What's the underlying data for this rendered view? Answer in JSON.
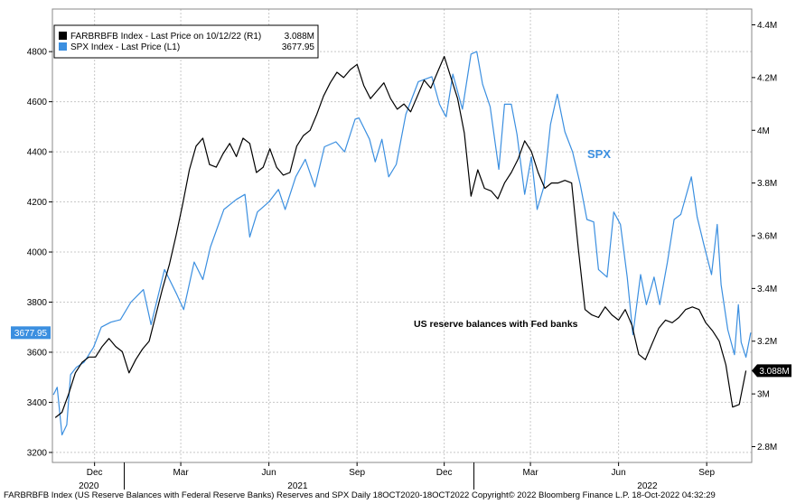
{
  "footer": "FARBRBFB Index (US Reserve Balances with Federal Reserve Banks) Reserves and SPX  Daily 18OCT2020-18OCT2022  Copyright© 2022 Bloomberg Finance L.P.  18-Oct-2022 04:32:29",
  "chart_data": {
    "type": "line",
    "legend": [
      {
        "label": "FARBRBFB Index - Last Price on 10/12/22 (R1)",
        "value": "3.088M",
        "color": "#000000"
      },
      {
        "label": "SPX Index - Last Price (L1)",
        "value": "3677.95",
        "color": "#3b8fe0"
      }
    ],
    "annotations": [
      {
        "text": "SPX",
        "color": "#3b8fe0"
      },
      {
        "text": "US reserve balances with Fed banks",
        "color": "#000000"
      }
    ],
    "last_value_tags": {
      "left": "3677.95",
      "right": "3.088M"
    },
    "x_ticks": [
      {
        "date": "2020-12-01",
        "label": "Dec"
      },
      {
        "date": "2021-03-01",
        "label": "Mar"
      },
      {
        "date": "2021-06-01",
        "label": "Jun"
      },
      {
        "date": "2021-09-01",
        "label": "Sep"
      },
      {
        "date": "2021-12-01",
        "label": "Dec"
      },
      {
        "date": "2022-03-01",
        "label": "Mar"
      },
      {
        "date": "2022-06-01",
        "label": "Jun"
      },
      {
        "date": "2022-09-01",
        "label": "Sep"
      }
    ],
    "year_labels": [
      {
        "label": "2020",
        "date": "2020-11-25"
      },
      {
        "label": "2021",
        "date": "2021-07-01"
      },
      {
        "label": "2022",
        "date": "2022-07-01"
      }
    ],
    "year_dividers": [
      "2021-01-01",
      "2022-01-01"
    ],
    "xlim": [
      "2020-10-18",
      "2022-10-18"
    ],
    "y_left": {
      "ticks": [
        3200,
        3400,
        3600,
        3800,
        4000,
        4200,
        4400,
        4600,
        4800
      ],
      "ylim": [
        3160,
        4970
      ]
    },
    "y_right": {
      "ticks": [
        2.8,
        3.0,
        3.2,
        3.4,
        3.6,
        3.8,
        4.0,
        4.2,
        4.4
      ],
      "tick_labels": [
        "2.8M",
        "3M",
        "3.2M",
        "3.4M",
        "3.6M",
        "3.8M",
        "4M",
        "4.2M",
        "4.4M"
      ],
      "ylim": [
        2.74,
        4.46
      ],
      "unit": "M"
    },
    "grid": true,
    "series": [
      {
        "name": "SPX Index - Last Price (L1)",
        "axis": "left",
        "color": "#3b8fe0",
        "points": [
          [
            "2020-10-19",
            3430
          ],
          [
            "2020-10-23",
            3460
          ],
          [
            "2020-10-28",
            3270
          ],
          [
            "2020-11-02",
            3310
          ],
          [
            "2020-11-06",
            3510
          ],
          [
            "2020-11-12",
            3540
          ],
          [
            "2020-11-20",
            3560
          ],
          [
            "2020-11-30",
            3620
          ],
          [
            "2020-12-08",
            3700
          ],
          [
            "2020-12-18",
            3720
          ],
          [
            "2020-12-28",
            3730
          ],
          [
            "2021-01-08",
            3800
          ],
          [
            "2021-01-21",
            3850
          ],
          [
            "2021-01-29",
            3710
          ],
          [
            "2021-02-12",
            3930
          ],
          [
            "2021-02-25",
            3830
          ],
          [
            "2021-03-04",
            3770
          ],
          [
            "2021-03-15",
            3960
          ],
          [
            "2021-03-24",
            3890
          ],
          [
            "2021-04-01",
            4020
          ],
          [
            "2021-04-15",
            4170
          ],
          [
            "2021-04-28",
            4210
          ],
          [
            "2021-05-07",
            4230
          ],
          [
            "2021-05-12",
            4060
          ],
          [
            "2021-05-20",
            4160
          ],
          [
            "2021-06-01",
            4200
          ],
          [
            "2021-06-11",
            4250
          ],
          [
            "2021-06-18",
            4170
          ],
          [
            "2021-06-29",
            4300
          ],
          [
            "2021-07-09",
            4370
          ],
          [
            "2021-07-19",
            4260
          ],
          [
            "2021-07-29",
            4420
          ],
          [
            "2021-08-10",
            4440
          ],
          [
            "2021-08-19",
            4400
          ],
          [
            "2021-08-30",
            4530
          ],
          [
            "2021-09-03",
            4535
          ],
          [
            "2021-09-14",
            4450
          ],
          [
            "2021-09-20",
            4360
          ],
          [
            "2021-09-27",
            4450
          ],
          [
            "2021-10-04",
            4300
          ],
          [
            "2021-10-12",
            4350
          ],
          [
            "2021-10-22",
            4550
          ],
          [
            "2021-11-04",
            4680
          ],
          [
            "2021-11-18",
            4700
          ],
          [
            "2021-11-26",
            4590
          ],
          [
            "2021-11-30",
            4560
          ],
          [
            "2021-12-03",
            4540
          ],
          [
            "2021-12-10",
            4710
          ],
          [
            "2021-12-20",
            4570
          ],
          [
            "2021-12-29",
            4790
          ],
          [
            "2022-01-04",
            4800
          ],
          [
            "2022-01-10",
            4670
          ],
          [
            "2022-01-18",
            4580
          ],
          [
            "2022-01-27",
            4330
          ],
          [
            "2022-02-02",
            4590
          ],
          [
            "2022-02-09",
            4590
          ],
          [
            "2022-02-15",
            4470
          ],
          [
            "2022-02-23",
            4230
          ],
          [
            "2022-03-02",
            4380
          ],
          [
            "2022-03-08",
            4170
          ],
          [
            "2022-03-15",
            4260
          ],
          [
            "2022-03-22",
            4510
          ],
          [
            "2022-03-29",
            4630
          ],
          [
            "2022-04-06",
            4480
          ],
          [
            "2022-04-14",
            4400
          ],
          [
            "2022-04-22",
            4270
          ],
          [
            "2022-04-29",
            4130
          ],
          [
            "2022-05-06",
            4120
          ],
          [
            "2022-05-11",
            3930
          ],
          [
            "2022-05-20",
            3900
          ],
          [
            "2022-05-27",
            4160
          ],
          [
            "2022-06-03",
            4110
          ],
          [
            "2022-06-10",
            3900
          ],
          [
            "2022-06-16",
            3670
          ],
          [
            "2022-06-24",
            3910
          ],
          [
            "2022-06-30",
            3790
          ],
          [
            "2022-07-08",
            3900
          ],
          [
            "2022-07-14",
            3790
          ],
          [
            "2022-07-22",
            3960
          ],
          [
            "2022-07-29",
            4130
          ],
          [
            "2022-08-05",
            4150
          ],
          [
            "2022-08-16",
            4300
          ],
          [
            "2022-08-22",
            4140
          ],
          [
            "2022-08-29",
            4030
          ],
          [
            "2022-09-06",
            3910
          ],
          [
            "2022-09-12",
            4110
          ],
          [
            "2022-09-16",
            3870
          ],
          [
            "2022-09-23",
            3690
          ],
          [
            "2022-09-30",
            3590
          ],
          [
            "2022-10-04",
            3790
          ],
          [
            "2022-10-07",
            3640
          ],
          [
            "2022-10-12",
            3580
          ],
          [
            "2022-10-17",
            3678
          ]
        ]
      },
      {
        "name": "FARBRBFB Index - Last Price on 10/12/22 (R1)",
        "axis": "right",
        "color": "#000000",
        "points": [
          [
            "2020-10-21",
            2.91
          ],
          [
            "2020-10-28",
            2.93
          ],
          [
            "2020-11-04",
            3.0
          ],
          [
            "2020-11-11",
            3.08
          ],
          [
            "2020-11-18",
            3.12
          ],
          [
            "2020-11-25",
            3.14
          ],
          [
            "2020-12-02",
            3.14
          ],
          [
            "2020-12-09",
            3.18
          ],
          [
            "2020-12-16",
            3.21
          ],
          [
            "2020-12-23",
            3.18
          ],
          [
            "2020-12-30",
            3.16
          ],
          [
            "2021-01-06",
            3.08
          ],
          [
            "2021-01-13",
            3.13
          ],
          [
            "2021-01-20",
            3.17
          ],
          [
            "2021-01-27",
            3.2
          ],
          [
            "2021-02-03",
            3.3
          ],
          [
            "2021-02-10",
            3.4
          ],
          [
            "2021-02-17",
            3.49
          ],
          [
            "2021-02-24",
            3.6
          ],
          [
            "2021-03-03",
            3.72
          ],
          [
            "2021-03-10",
            3.85
          ],
          [
            "2021-03-17",
            3.94
          ],
          [
            "2021-03-24",
            3.97
          ],
          [
            "2021-03-31",
            3.87
          ],
          [
            "2021-04-07",
            3.86
          ],
          [
            "2021-04-14",
            3.91
          ],
          [
            "2021-04-21",
            3.95
          ],
          [
            "2021-04-28",
            3.9
          ],
          [
            "2021-05-05",
            3.97
          ],
          [
            "2021-05-12",
            3.95
          ],
          [
            "2021-05-19",
            3.84
          ],
          [
            "2021-05-26",
            3.86
          ],
          [
            "2021-06-02",
            3.93
          ],
          [
            "2021-06-09",
            3.86
          ],
          [
            "2021-06-16",
            3.83
          ],
          [
            "2021-06-23",
            3.84
          ],
          [
            "2021-06-30",
            3.94
          ],
          [
            "2021-07-07",
            3.98
          ],
          [
            "2021-07-14",
            4.0
          ],
          [
            "2021-07-21",
            4.06
          ],
          [
            "2021-07-28",
            4.13
          ],
          [
            "2021-08-04",
            4.18
          ],
          [
            "2021-08-11",
            4.22
          ],
          [
            "2021-08-18",
            4.2
          ],
          [
            "2021-08-25",
            4.23
          ],
          [
            "2021-09-01",
            4.25
          ],
          [
            "2021-09-08",
            4.17
          ],
          [
            "2021-09-15",
            4.12
          ],
          [
            "2021-09-22",
            4.15
          ],
          [
            "2021-09-29",
            4.18
          ],
          [
            "2021-10-06",
            4.12
          ],
          [
            "2021-10-13",
            4.08
          ],
          [
            "2021-10-20",
            4.1
          ],
          [
            "2021-10-27",
            4.07
          ],
          [
            "2021-11-03",
            4.13
          ],
          [
            "2021-11-10",
            4.19
          ],
          [
            "2021-11-17",
            4.16
          ],
          [
            "2021-11-24",
            4.22
          ],
          [
            "2021-12-01",
            4.28
          ],
          [
            "2021-12-08",
            4.2
          ],
          [
            "2021-12-15",
            4.12
          ],
          [
            "2021-12-22",
            3.99
          ],
          [
            "2021-12-29",
            3.75
          ],
          [
            "2022-01-05",
            3.85
          ],
          [
            "2022-01-12",
            3.78
          ],
          [
            "2022-01-19",
            3.77
          ],
          [
            "2022-01-26",
            3.74
          ],
          [
            "2022-02-02",
            3.8
          ],
          [
            "2022-02-09",
            3.84
          ],
          [
            "2022-02-16",
            3.89
          ],
          [
            "2022-02-23",
            3.96
          ],
          [
            "2022-03-02",
            3.92
          ],
          [
            "2022-03-09",
            3.84
          ],
          [
            "2022-03-16",
            3.78
          ],
          [
            "2022-03-23",
            3.8
          ],
          [
            "2022-03-30",
            3.8
          ],
          [
            "2022-04-06",
            3.81
          ],
          [
            "2022-04-13",
            3.8
          ],
          [
            "2022-04-20",
            3.55
          ],
          [
            "2022-04-27",
            3.32
          ],
          [
            "2022-05-04",
            3.3
          ],
          [
            "2022-05-11",
            3.29
          ],
          [
            "2022-05-18",
            3.33
          ],
          [
            "2022-05-25",
            3.3
          ],
          [
            "2022-06-01",
            3.28
          ],
          [
            "2022-06-08",
            3.32
          ],
          [
            "2022-06-15",
            3.26
          ],
          [
            "2022-06-22",
            3.15
          ],
          [
            "2022-06-29",
            3.13
          ],
          [
            "2022-07-06",
            3.19
          ],
          [
            "2022-07-13",
            3.25
          ],
          [
            "2022-07-20",
            3.28
          ],
          [
            "2022-07-27",
            3.27
          ],
          [
            "2022-08-03",
            3.29
          ],
          [
            "2022-08-10",
            3.32
          ],
          [
            "2022-08-17",
            3.33
          ],
          [
            "2022-08-24",
            3.32
          ],
          [
            "2022-08-31",
            3.27
          ],
          [
            "2022-09-07",
            3.24
          ],
          [
            "2022-09-14",
            3.2
          ],
          [
            "2022-09-21",
            3.11
          ],
          [
            "2022-09-28",
            2.95
          ],
          [
            "2022-10-05",
            2.96
          ],
          [
            "2022-10-12",
            3.088
          ]
        ]
      }
    ]
  }
}
